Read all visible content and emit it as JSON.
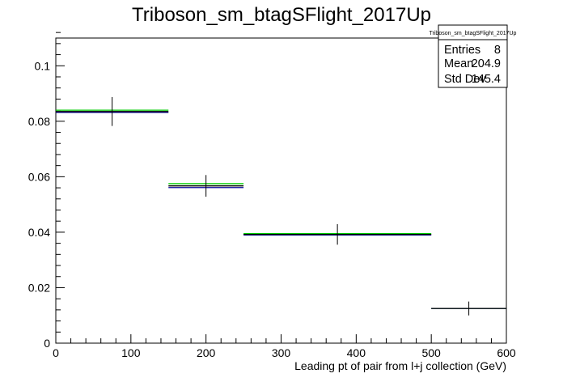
{
  "chart_data": {
    "type": "histogram",
    "title": "Triboson_sm_btagSFlight_2017Up",
    "xlabel": "Leading pt of pair from l+j collection (GeV)",
    "ylabel": "",
    "xlim": [
      0,
      600
    ],
    "ylim": [
      0,
      0.11
    ],
    "x_ticks": [
      0,
      100,
      200,
      300,
      400,
      500,
      600
    ],
    "y_ticks": [
      0,
      0.02,
      0.04,
      0.06,
      0.08,
      0.1
    ],
    "x_tick_labels": [
      "0",
      "100",
      "200",
      "300",
      "400",
      "500",
      "600"
    ],
    "y_tick_labels": [
      "0",
      "0.02",
      "0.04",
      "0.06",
      "0.08",
      "0.1"
    ],
    "grid": false,
    "bins": [
      {
        "low": 0,
        "high": 150,
        "center": 75,
        "value": 0.0835,
        "error": 0.0052
      },
      {
        "low": 150,
        "high": 250,
        "center": 200,
        "value": 0.0567,
        "error": 0.0039
      },
      {
        "low": 250,
        "high": 500,
        "center": 375,
        "value": 0.0392,
        "error": 0.0037
      },
      {
        "low": 500,
        "high": 600,
        "center": 550,
        "value": 0.0125,
        "error": 0.0025
      }
    ],
    "series": [
      {
        "color": "#000000",
        "values": [
          0.0835,
          0.0567,
          0.0392,
          0.0125
        ],
        "errors": [
          0.0052,
          0.0039,
          0.0037,
          0.0025
        ]
      },
      {
        "color": "#00cc00",
        "values": [
          0.084,
          0.0575,
          0.0395,
          0.0125
        ]
      },
      {
        "color": "#000099",
        "values": [
          0.0832,
          0.0561,
          0.039,
          0.0125
        ]
      }
    ],
    "stats_box": {
      "title": "Triboson_sm_btagSFlight_2017Up",
      "rows": [
        {
          "label": "Entries",
          "value": "8"
        },
        {
          "label": "Mean",
          "value": "204.9"
        },
        {
          "label": "Std Dev",
          "value": "145.4"
        }
      ]
    }
  }
}
